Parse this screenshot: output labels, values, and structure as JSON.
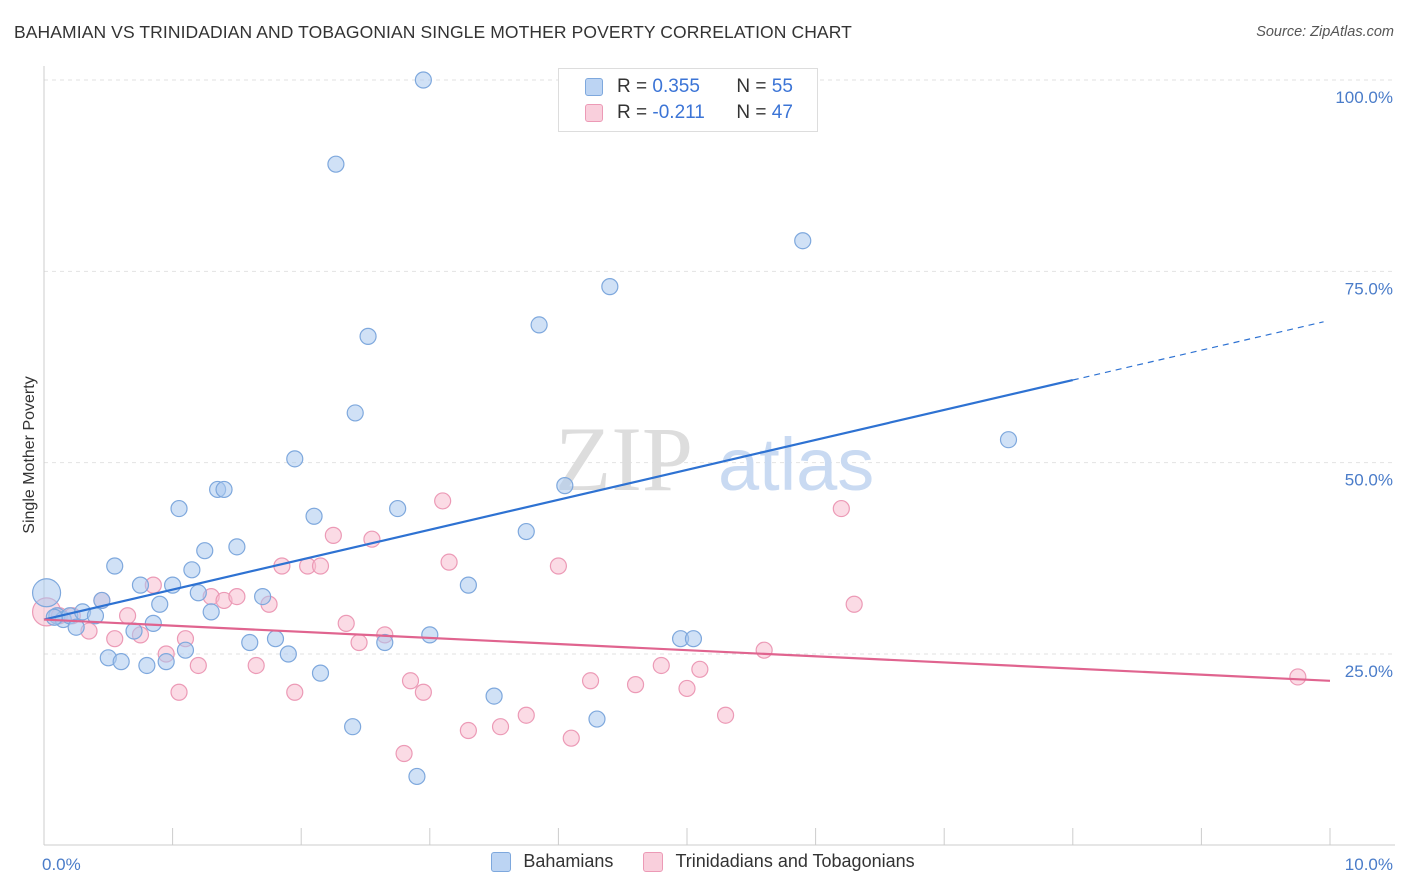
{
  "header": {
    "title": "BAHAMIAN VS TRINIDADIAN AND TOBAGONIAN SINGLE MOTHER POVERTY CORRELATION CHART",
    "source": "Source: ZipAtlas.com"
  },
  "watermark": {
    "zip": "ZIP",
    "atlas": "atlas"
  },
  "legend": {
    "r_label": "R =",
    "n_label": "N =",
    "series1": {
      "r": "0.355",
      "n": "55"
    },
    "series2": {
      "r": "-0.211",
      "n": "47"
    }
  },
  "bottom_legend": {
    "series1": "Bahamians",
    "series2": "Trinidadians and Tobagonians"
  },
  "colors": {
    "blue_fill": "#a9c8ef",
    "blue_stroke": "#7ea8dd",
    "blue_line": "#2e72d2",
    "pink_fill": "#f7bdd0",
    "pink_stroke": "#ec9ab6",
    "pink_line": "#e0648f",
    "grid": "#e2e2e2",
    "tick_text": "#4a7cc9"
  },
  "chart_data": {
    "type": "scatter",
    "title": "BAHAMIAN VS TRINIDADIAN AND TOBAGONIAN SINGLE MOTHER POVERTY CORRELATION CHART",
    "xlabel": "",
    "ylabel": "Single Mother Poverty",
    "xlim": [
      0,
      10
    ],
    "ylim": [
      0,
      103
    ],
    "x_tick_labels": [
      "0.0%",
      "10.0%"
    ],
    "y_ticks": [
      25,
      50,
      75,
      100
    ],
    "y_tick_labels": [
      "25.0%",
      "50.0%",
      "75.0%",
      "100.0%"
    ],
    "series": [
      {
        "name": "Bahamians",
        "r": 0.355,
        "n": 55,
        "trend": {
          "x0": 0,
          "y0": 29.5,
          "x1": 8.0,
          "y1": 60.8,
          "dash_to_x": 9.95,
          "dash_to_y": 68.4
        },
        "points": [
          [
            0.02,
            33.0
          ],
          [
            0.1,
            30.0
          ],
          [
            0.15,
            29.5
          ],
          [
            0.2,
            30.0
          ],
          [
            0.25,
            28.5
          ],
          [
            0.3,
            30.5
          ],
          [
            0.4,
            30.0
          ],
          [
            0.45,
            32.0
          ],
          [
            0.5,
            24.5
          ],
          [
            0.55,
            36.5
          ],
          [
            0.6,
            24.0
          ],
          [
            0.7,
            28.0
          ],
          [
            0.75,
            34.0
          ],
          [
            0.8,
            23.5
          ],
          [
            0.85,
            29.0
          ],
          [
            0.9,
            31.5
          ],
          [
            0.95,
            24.0
          ],
          [
            1.0,
            34.0
          ],
          [
            1.05,
            44.0
          ],
          [
            1.1,
            25.5
          ],
          [
            1.15,
            36.0
          ],
          [
            1.2,
            33.0
          ],
          [
            1.25,
            38.5
          ],
          [
            1.3,
            30.5
          ],
          [
            1.35,
            46.5
          ],
          [
            1.4,
            46.5
          ],
          [
            1.5,
            39.0
          ],
          [
            1.6,
            26.5
          ],
          [
            1.7,
            32.5
          ],
          [
            1.8,
            27.0
          ],
          [
            1.9,
            25.0
          ],
          [
            1.95,
            50.5
          ],
          [
            2.1,
            43.0
          ],
          [
            2.15,
            22.5
          ],
          [
            2.27,
            89.0
          ],
          [
            2.4,
            15.5
          ],
          [
            2.42,
            56.5
          ],
          [
            2.52,
            66.5
          ],
          [
            2.65,
            26.5
          ],
          [
            2.75,
            44.0
          ],
          [
            2.9,
            9.0
          ],
          [
            2.95,
            100.0
          ],
          [
            3.0,
            27.5
          ],
          [
            3.3,
            34.0
          ],
          [
            3.5,
            19.5
          ],
          [
            3.75,
            41.0
          ],
          [
            3.85,
            68.0
          ],
          [
            4.05,
            47.0
          ],
          [
            4.3,
            16.5
          ],
          [
            4.4,
            73.0
          ],
          [
            4.95,
            27.0
          ],
          [
            5.05,
            27.0
          ],
          [
            5.9,
            79.0
          ],
          [
            7.5,
            53.0
          ],
          [
            0.08,
            29.8
          ]
        ]
      },
      {
        "name": "Trinidadians and Tobagonians",
        "r": -0.211,
        "n": 47,
        "trend": {
          "x0": 0,
          "y0": 29.5,
          "x1": 10.0,
          "y1": 21.5
        },
        "points": [
          [
            0.02,
            30.5
          ],
          [
            0.12,
            30.0
          ],
          [
            0.22,
            30.0
          ],
          [
            0.35,
            28.0
          ],
          [
            0.45,
            32.0
          ],
          [
            0.55,
            27.0
          ],
          [
            0.65,
            30.0
          ],
          [
            0.75,
            27.5
          ],
          [
            0.85,
            34.0
          ],
          [
            0.95,
            25.0
          ],
          [
            1.05,
            20.0
          ],
          [
            1.1,
            27.0
          ],
          [
            1.2,
            23.5
          ],
          [
            1.3,
            32.5
          ],
          [
            1.4,
            32.0
          ],
          [
            1.5,
            32.5
          ],
          [
            1.65,
            23.5
          ],
          [
            1.75,
            31.5
          ],
          [
            1.85,
            36.5
          ],
          [
            1.95,
            20.0
          ],
          [
            2.05,
            36.5
          ],
          [
            2.15,
            36.5
          ],
          [
            2.25,
            40.5
          ],
          [
            2.35,
            29.0
          ],
          [
            2.45,
            26.5
          ],
          [
            2.55,
            40.0
          ],
          [
            2.65,
            27.5
          ],
          [
            2.8,
            12.0
          ],
          [
            2.85,
            21.5
          ],
          [
            2.95,
            20.0
          ],
          [
            3.1,
            45.0
          ],
          [
            3.15,
            37.0
          ],
          [
            3.3,
            15.0
          ],
          [
            3.55,
            15.5
          ],
          [
            3.75,
            17.0
          ],
          [
            4.0,
            36.5
          ],
          [
            4.1,
            14.0
          ],
          [
            4.25,
            21.5
          ],
          [
            4.6,
            21.0
          ],
          [
            4.8,
            23.5
          ],
          [
            5.0,
            20.5
          ],
          [
            5.1,
            23.0
          ],
          [
            5.3,
            17.0
          ],
          [
            5.6,
            25.5
          ],
          [
            6.2,
            44.0
          ],
          [
            6.3,
            31.5
          ],
          [
            9.75,
            22.0
          ]
        ]
      }
    ]
  }
}
